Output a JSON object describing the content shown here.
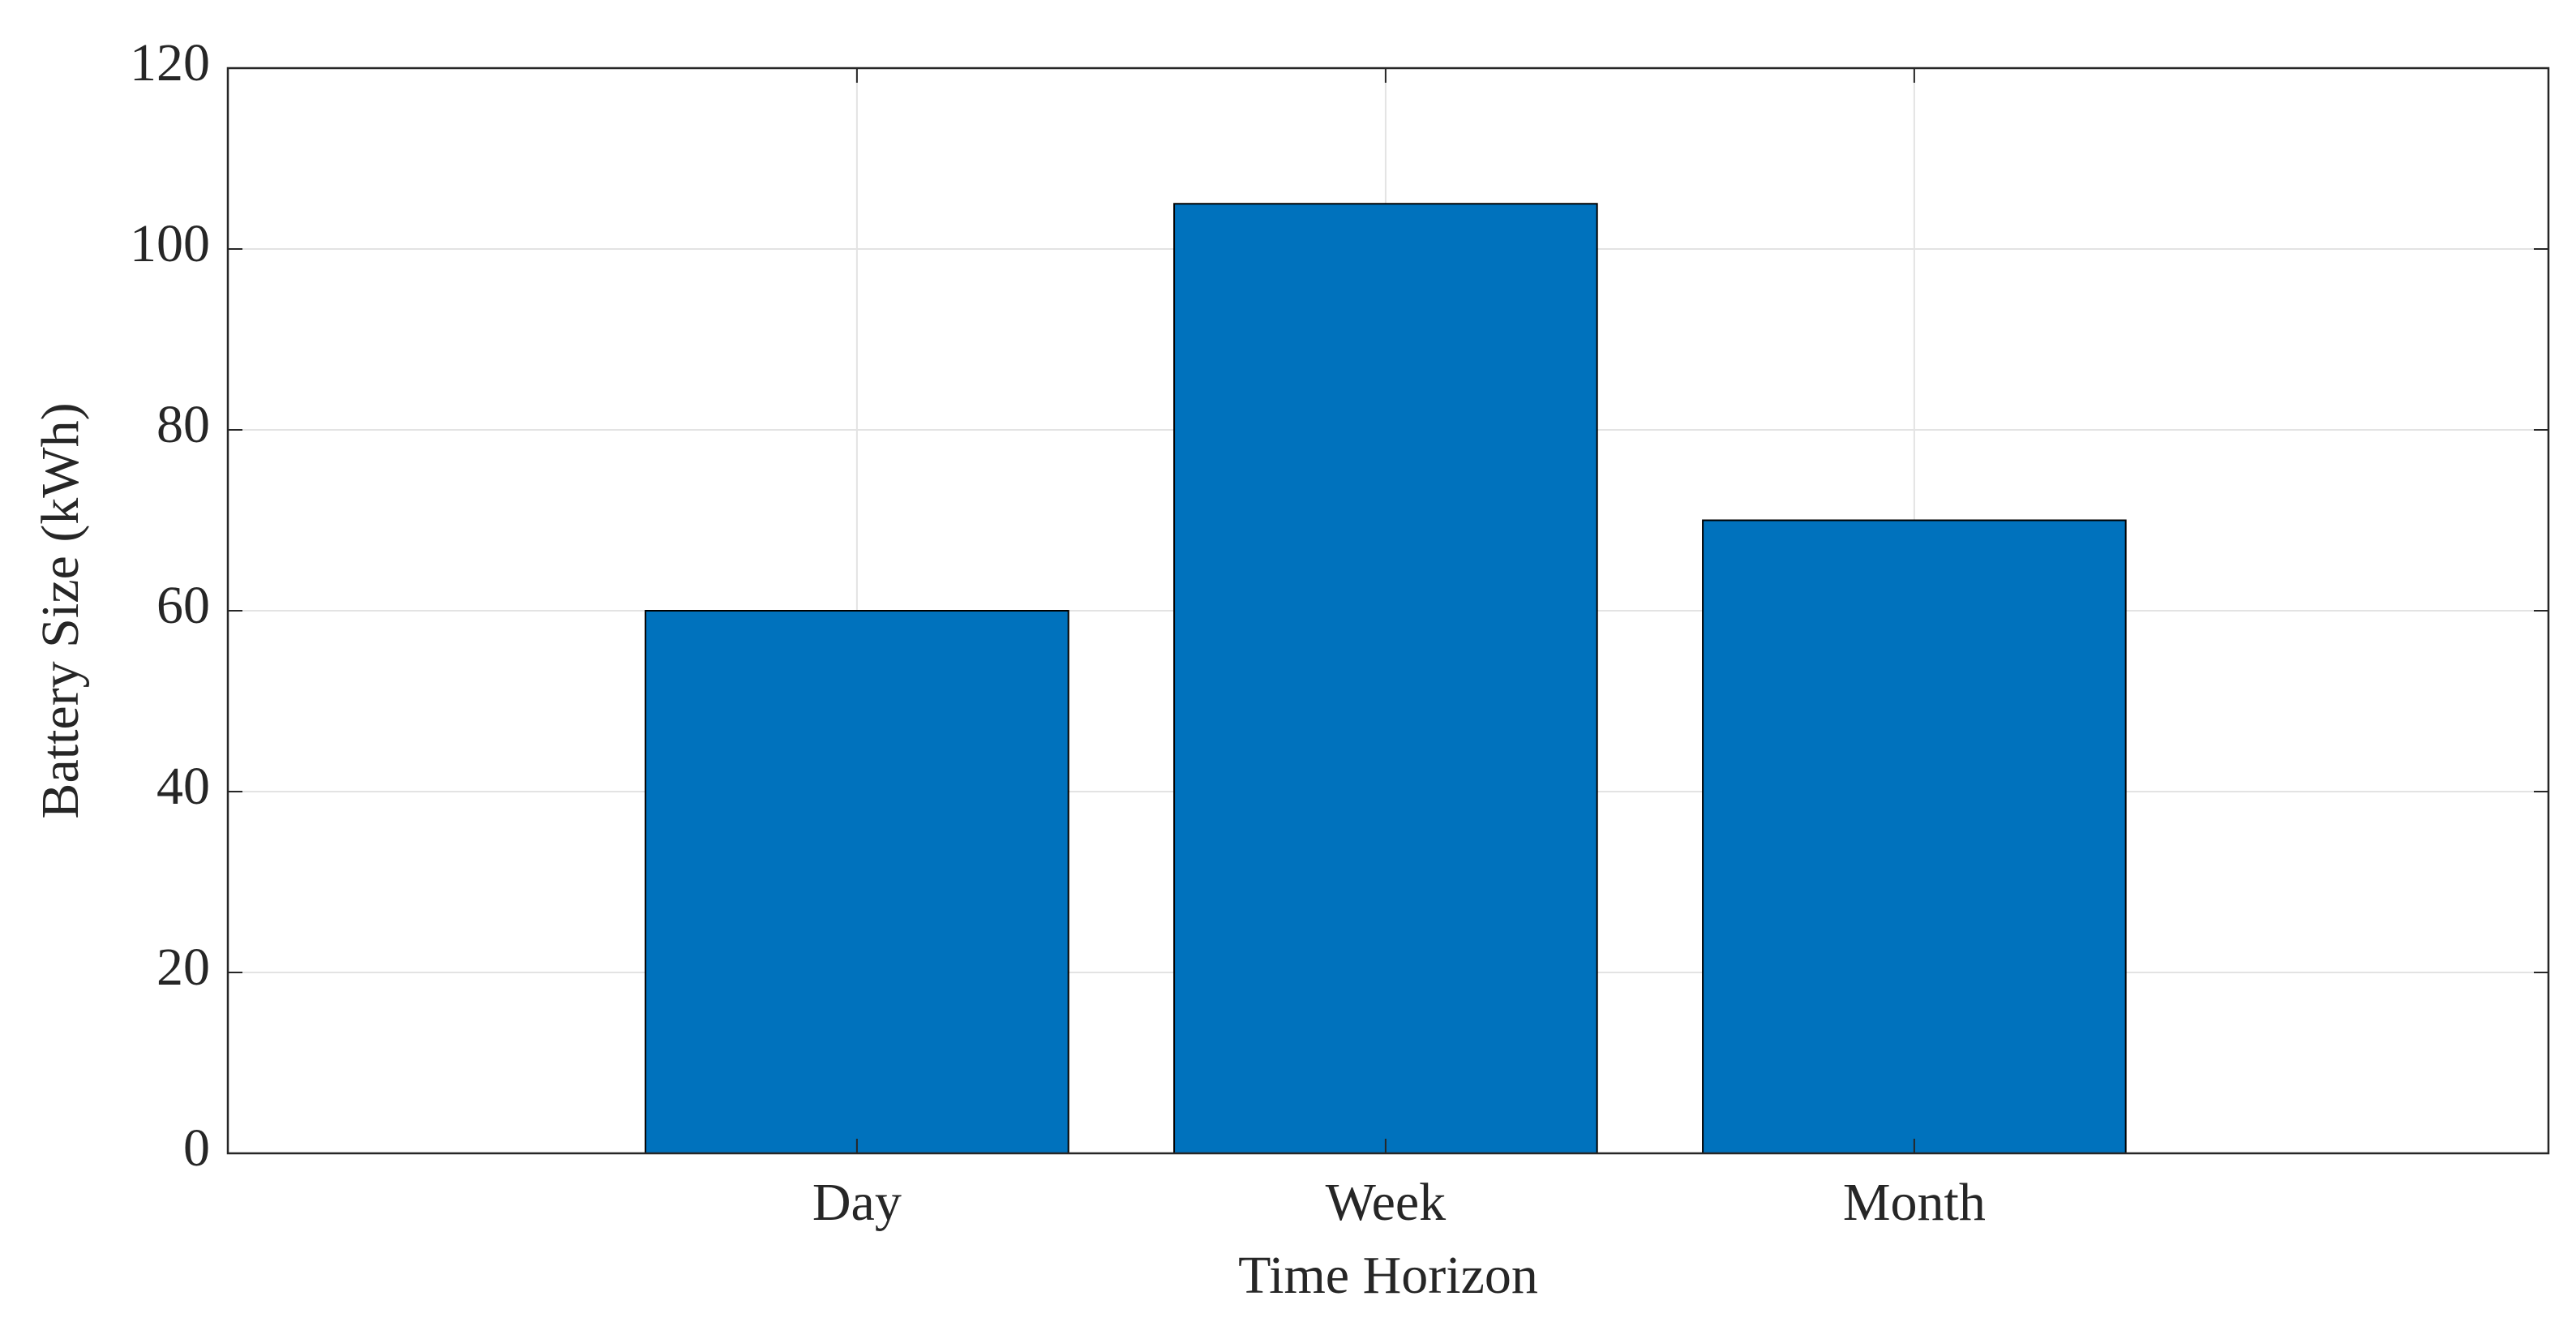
{
  "chart_data": {
    "type": "bar",
    "x_label": "Time Horizon",
    "y_label": "Battery Size (kWh)",
    "categories": [
      "Day",
      "Week",
      "Month"
    ],
    "values": [
      60,
      105,
      70
    ],
    "color": "#0072bd",
    "ylim": [
      0,
      120
    ],
    "yticks": [
      0,
      20,
      40,
      60,
      80,
      100,
      120
    ],
    "grid": true
  }
}
